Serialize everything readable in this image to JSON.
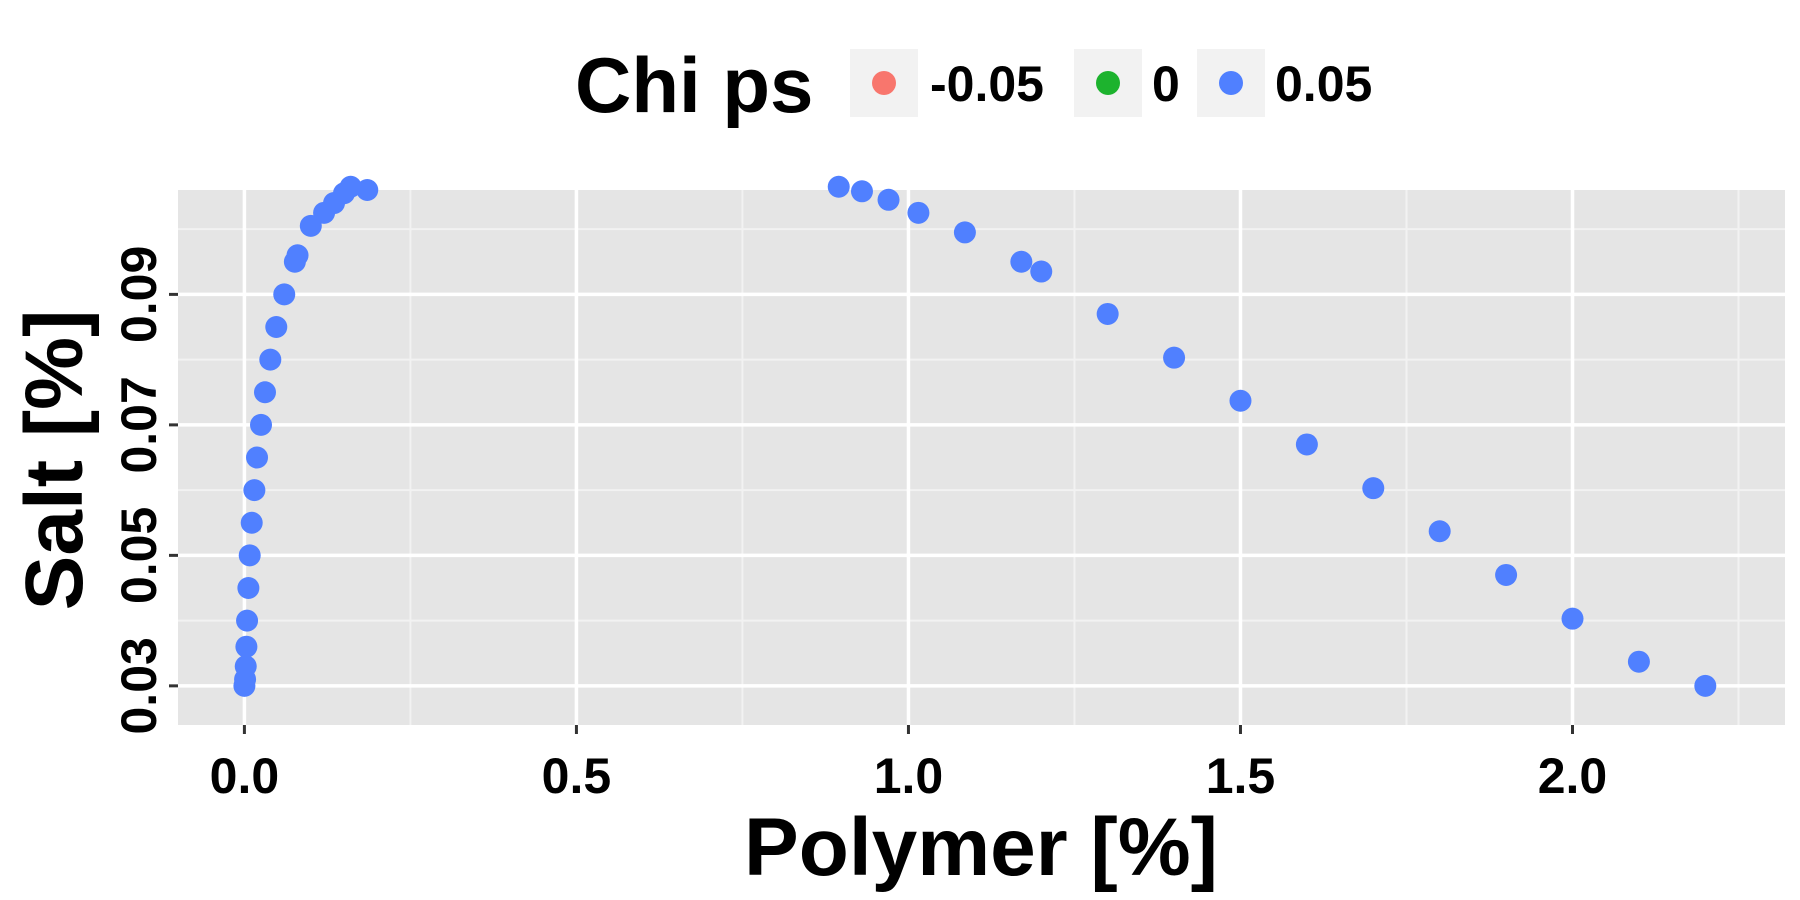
{
  "chart_data": {
    "type": "scatter",
    "title": "",
    "xlabel": "Polymer [%]",
    "ylabel": "Salt [%]",
    "xlim": [
      -0.1,
      2.32
    ],
    "ylim": [
      0.024,
      0.106
    ],
    "x_ticks": [
      0.0,
      0.5,
      1.0,
      1.5,
      2.0
    ],
    "x_tick_labels": [
      "0.0",
      "0.5",
      "1.0",
      "1.5",
      "2.0"
    ],
    "y_ticks": [
      0.03,
      0.05,
      0.07,
      0.09
    ],
    "y_tick_labels": [
      "0.03",
      "0.05",
      "0.07",
      "0.09"
    ],
    "grid": true,
    "legend": {
      "title": "Chi ps",
      "position": "top",
      "entries": [
        {
          "label": "-0.05",
          "color": "#F8766D"
        },
        {
          "label": "0",
          "color": "#1DB32E"
        },
        {
          "label": "0.05",
          "color": "#5080FF"
        }
      ]
    },
    "series": [
      {
        "name": "0.05",
        "color": "#5080FF",
        "points": [
          [
            0.0,
            0.03
          ],
          [
            0.001,
            0.031
          ],
          [
            0.002,
            0.033
          ],
          [
            0.003,
            0.036
          ],
          [
            0.004,
            0.04
          ],
          [
            0.006,
            0.045
          ],
          [
            0.008,
            0.05
          ],
          [
            0.011,
            0.055
          ],
          [
            0.015,
            0.06
          ],
          [
            0.019,
            0.065
          ],
          [
            0.025,
            0.07
          ],
          [
            0.031,
            0.075
          ],
          [
            0.039,
            0.08
          ],
          [
            0.048,
            0.085
          ],
          [
            0.06,
            0.09
          ],
          [
            0.076,
            0.095
          ],
          [
            0.08,
            0.096
          ],
          [
            0.1,
            0.1005
          ],
          [
            0.12,
            0.1025
          ],
          [
            0.135,
            0.104
          ],
          [
            0.15,
            0.1055
          ],
          [
            0.16,
            0.1065
          ],
          [
            0.185,
            0.106
          ],
          [
            0.895,
            0.1065
          ],
          [
            0.93,
            0.1058
          ],
          [
            0.97,
            0.1045
          ],
          [
            1.015,
            0.1025
          ],
          [
            1.085,
            0.0995
          ],
          [
            1.17,
            0.095
          ],
          [
            1.2,
            0.0935
          ],
          [
            1.3,
            0.087
          ],
          [
            1.4,
            0.0803
          ],
          [
            1.5,
            0.0737
          ],
          [
            1.6,
            0.067
          ],
          [
            1.7,
            0.0603
          ],
          [
            1.8,
            0.0537
          ],
          [
            1.9,
            0.047
          ],
          [
            2.0,
            0.0403
          ],
          [
            2.1,
            0.0337
          ],
          [
            2.2,
            0.03
          ]
        ]
      }
    ]
  }
}
